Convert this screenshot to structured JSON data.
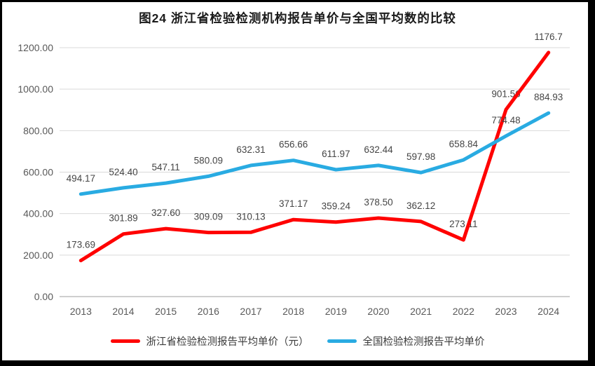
{
  "chart_data": {
    "type": "line",
    "title": "图24  浙江省检验检测机构报告单价与全国平均数的比较",
    "categories": [
      "2013",
      "2014",
      "2015",
      "2016",
      "2017",
      "2018",
      "2019",
      "2020",
      "2021",
      "2022",
      "2023",
      "2024"
    ],
    "series": [
      {
        "name": "浙江省检验检测报告平均单价（元）",
        "color": "#FF0000",
        "values": [
          173.69,
          301.89,
          327.6,
          309.09,
          310.13,
          371.17,
          359.24,
          378.5,
          362.12,
          273.11,
          901.56,
          1176.7
        ],
        "labels": [
          "173.69",
          "301.89",
          "327.60",
          "309.09",
          "310.13",
          "371.17",
          "359.24",
          "378.50",
          "362.12",
          "273.11",
          "901.56",
          "1176.7"
        ]
      },
      {
        "name": "全国检验检测报告平均单价",
        "color": "#29ABE2",
        "values": [
          494.17,
          524.4,
          547.11,
          580.09,
          632.31,
          656.66,
          611.97,
          632.44,
          597.98,
          658.84,
          774.48,
          884.93
        ],
        "labels": [
          "494.17",
          "524.40",
          "547.11",
          "580.09",
          "632.31",
          "656.66",
          "611.97",
          "632.44",
          "597.98",
          "658.84",
          "774.48",
          "884.93"
        ]
      }
    ],
    "ylim": [
      0,
      1200
    ],
    "y_ticks": [
      {
        "value": 0,
        "label": "0.00"
      },
      {
        "value": 200,
        "label": "200.00"
      },
      {
        "value": 400,
        "label": "400.00"
      },
      {
        "value": 600,
        "label": "600.00"
      },
      {
        "value": 800,
        "label": "800.00"
      },
      {
        "value": 1000,
        "label": "1000.00"
      },
      {
        "value": 1200,
        "label": "1200.00"
      }
    ],
    "grid": true,
    "legend_position": "bottom",
    "colors": {
      "gridline": "#D9D9D9",
      "axis_line": "#BFBFBF",
      "tick_text": "#595959",
      "data_label_text": "#454545"
    }
  }
}
